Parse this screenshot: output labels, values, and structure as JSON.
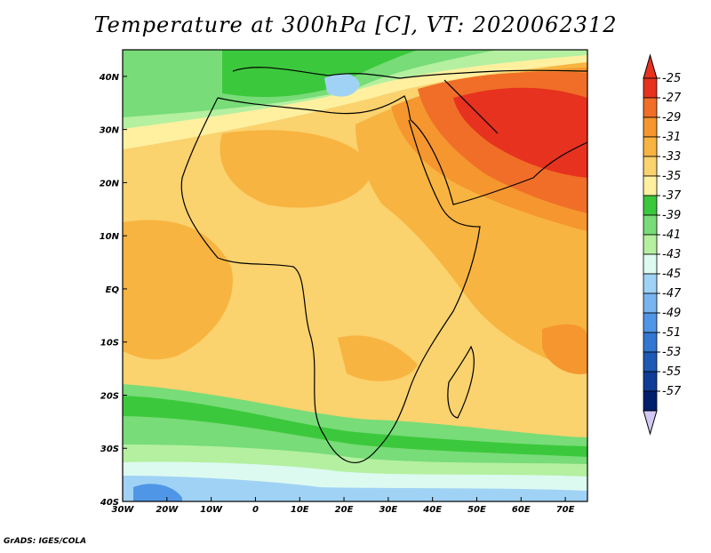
{
  "title": "Temperature at 300hPa [C], VT: 2020062312",
  "credit": "GrADS: IGES/COLA",
  "map": {
    "lon_range": [
      -30,
      75
    ],
    "lat_range": [
      -40,
      45
    ],
    "lon_ticks": [
      {
        "lon": -30,
        "label": "30W"
      },
      {
        "lon": -20,
        "label": "20W"
      },
      {
        "lon": -10,
        "label": "10W"
      },
      {
        "lon": 0,
        "label": "0"
      },
      {
        "lon": 10,
        "label": "10E"
      },
      {
        "lon": 20,
        "label": "20E"
      },
      {
        "lon": 30,
        "label": "30E"
      },
      {
        "lon": 40,
        "label": "40E"
      },
      {
        "lon": 50,
        "label": "50E"
      },
      {
        "lon": 60,
        "label": "60E"
      },
      {
        "lon": 70,
        "label": "70E"
      }
    ],
    "lat_ticks": [
      {
        "lat": 40,
        "label": "40N"
      },
      {
        "lat": 30,
        "label": "30N"
      },
      {
        "lat": 20,
        "label": "20N"
      },
      {
        "lat": 10,
        "label": "10N"
      },
      {
        "lat": 0,
        "label": "EQ"
      },
      {
        "lat": -10,
        "label": "10S"
      },
      {
        "lat": -20,
        "label": "20S"
      },
      {
        "lat": -30,
        "label": "30S"
      },
      {
        "lat": -40,
        "label": "40S"
      }
    ]
  },
  "colorbar": {
    "levels": [
      "-25",
      "-27",
      "-29",
      "-31",
      "-33",
      "-35",
      "-37",
      "-39",
      "-41",
      "-43",
      "-45",
      "-47",
      "-49",
      "-51",
      "-53",
      "-55",
      "-57"
    ],
    "colors": [
      "#e6321e",
      "#f06e28",
      "#f5962e",
      "#f8b440",
      "#fad26e",
      "#fff0a0",
      "#3cc83c",
      "#78dc78",
      "#b4f0a0",
      "#dcfaf0",
      "#a0d2f5",
      "#78b4f0",
      "#5096e6",
      "#3278d2",
      "#1e5ab4",
      "#0f3c96",
      "#001e6e"
    ],
    "top_arrow_color": "#e6321e",
    "bottom_arrow_color": "#d2c8f5"
  }
}
